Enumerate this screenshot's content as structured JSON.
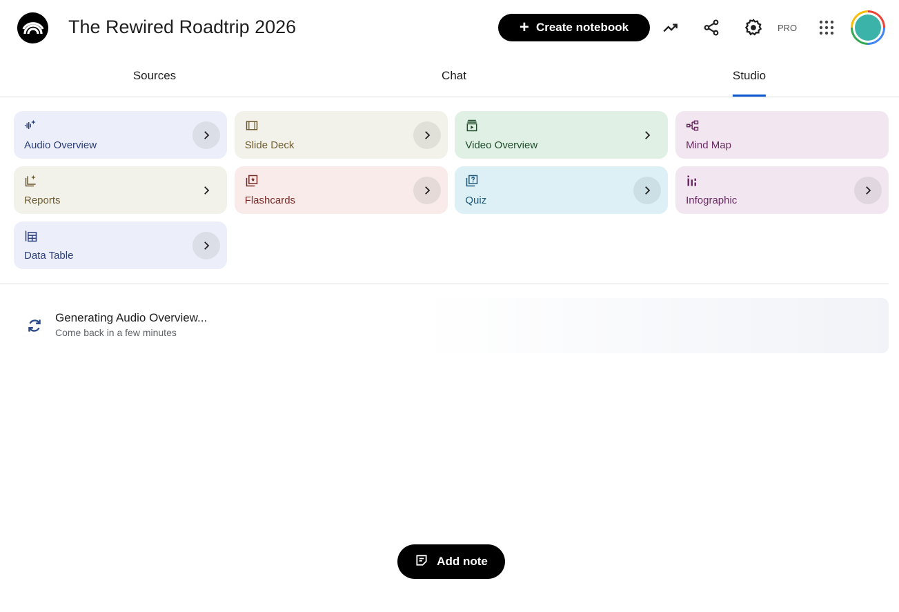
{
  "header": {
    "title": "The Rewired Roadtrip 2026",
    "create_label": "Create notebook",
    "pro_label": "PRO",
    "icons": [
      "notebooklm-logo-icon",
      "plus-icon",
      "analytics-trend-icon",
      "share-icon",
      "settings-gear-icon",
      "apps-grid-icon",
      "avatar"
    ]
  },
  "tabs": [
    {
      "label": "Sources"
    },
    {
      "label": "Chat"
    },
    {
      "label": "Studio",
      "active": true
    }
  ],
  "studio": {
    "cards": [
      {
        "label": "Audio Overview",
        "icon": "audio-waveform-sparkle-icon",
        "bg": "#eceef9",
        "color": "#2a3e7a"
      },
      {
        "label": "Slide Deck",
        "icon": "slides-icon",
        "bg": "#f2f1ea",
        "color": "#6b5a2f"
      },
      {
        "label": "Video Overview",
        "icon": "video-play-icon",
        "bg": "#e1f0e5",
        "color": "#1f4d2b"
      },
      {
        "label": "Mind Map",
        "icon": "mind-map-icon",
        "bg": "#f2e7f1",
        "color": "#6a2a62"
      },
      {
        "label": "Reports",
        "icon": "reports-sparkle-icon",
        "bg": "#f2f1ea",
        "color": "#6b5a2f"
      },
      {
        "label": "Flashcards",
        "icon": "flashcards-icon",
        "bg": "#f8ebea",
        "color": "#7a2a26"
      },
      {
        "label": "Quiz",
        "icon": "quiz-icon",
        "bg": "#dcf0f6",
        "color": "#1e5a7a"
      },
      {
        "label": "Infographic",
        "icon": "infographic-bars-icon",
        "bg": "#f2e7f1",
        "color": "#6a2a62"
      },
      {
        "label": "Data Table",
        "icon": "data-table-icon",
        "bg": "#eceef9",
        "color": "#2a3e7a"
      }
    ]
  },
  "generating": {
    "title": "Generating Audio Overview...",
    "subtitle": "Come back in a few minutes",
    "icon": "sync-icon"
  },
  "add_note_label": "Add note"
}
